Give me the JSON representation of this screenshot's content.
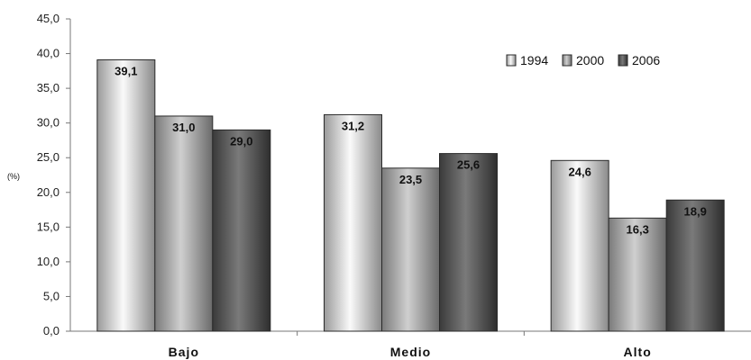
{
  "chart_data": {
    "type": "bar",
    "categories": [
      "Bajo",
      "Medio",
      "Alto"
    ],
    "series": [
      {
        "name": "1994",
        "values": [
          39.1,
          31.2,
          24.6
        ],
        "labels": [
          "39,1",
          "31,2",
          "24,6"
        ]
      },
      {
        "name": "2000",
        "values": [
          31.0,
          23.5,
          16.3
        ],
        "labels": [
          "31,0",
          "23,5",
          "16,3"
        ]
      },
      {
        "name": "2006",
        "values": [
          29.0,
          25.6,
          18.9
        ],
        "labels": [
          "29,0",
          "25,6",
          "18,9"
        ]
      }
    ],
    "yticks": [
      "0,0",
      "5,0",
      "10,0",
      "15,0",
      "20,0",
      "25,0",
      "30,0",
      "35,0",
      "40,0",
      "45,0"
    ],
    "ylabel": "(%)",
    "ylim": [
      0,
      45
    ],
    "grid": false,
    "legend_position": "top-right",
    "colors": {
      "1994": "#d8d8d8",
      "2000": "#a8a8a8",
      "2006": "#505050"
    }
  }
}
